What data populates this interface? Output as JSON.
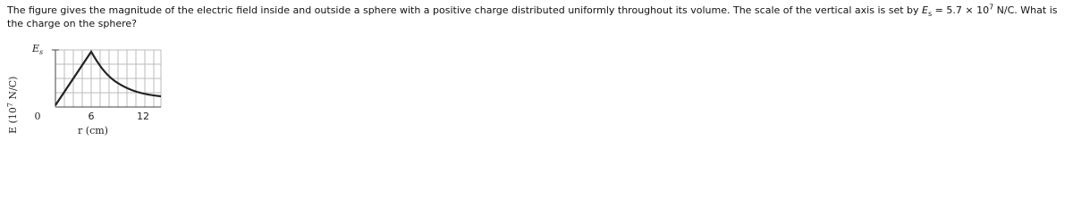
{
  "question": {
    "before": "The figure gives the magnitude of the electric field inside and outside a sphere with a positive charge distributed uniformly throughout its volume. The scale of the vertical axis is set by ",
    "var": "E",
    "var_sub": "s",
    "eq": " = 5.7 × 10",
    "exp": "7",
    "after": " N/C. What is the charge on the sphere?"
  },
  "figure": {
    "y_label": "E (10",
    "y_label_exp": "7",
    "y_label_end": " N/C)",
    "y_scale_label": "E",
    "y_scale_sub": "s",
    "x_ticks": [
      "0",
      "6",
      "12"
    ],
    "x_label": "r (cm)"
  }
}
